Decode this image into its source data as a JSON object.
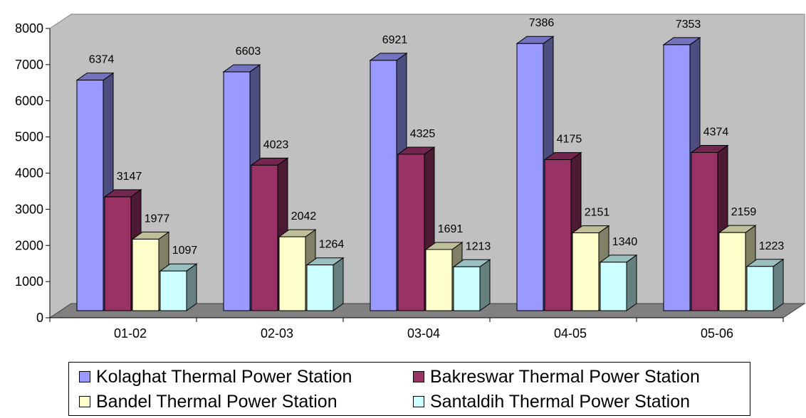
{
  "chart_data": {
    "type": "bar",
    "subtype": "3d-clustered-column",
    "categories": [
      "01-02",
      "02-03",
      "03-04",
      "04-05",
      "05-06"
    ],
    "series": [
      {
        "name": "Kolaghat Thermal Power Station",
        "color": "#9999ff",
        "values": [
          6374,
          6603,
          6921,
          7386,
          7353
        ]
      },
      {
        "name": "Bakreswar Thermal Power Station",
        "color": "#993366",
        "values": [
          3147,
          4023,
          4325,
          4175,
          4374
        ]
      },
      {
        "name": "Bandel Thermal Power Station",
        "color": "#ffffcc",
        "values": [
          1977,
          2042,
          1691,
          2151,
          2159
        ]
      },
      {
        "name": "Santaldih Thermal Power Station",
        "color": "#ccffff",
        "values": [
          1097,
          1264,
          1213,
          1340,
          1223
        ]
      }
    ],
    "yticks": [
      0,
      1000,
      2000,
      3000,
      4000,
      5000,
      6000,
      7000,
      8000
    ],
    "ylim": [
      0,
      8000
    ],
    "grid": false,
    "data_labels": true,
    "legend_position": "bottom",
    "wall_color": "#c0c0c0",
    "floor_color": "#808080"
  }
}
